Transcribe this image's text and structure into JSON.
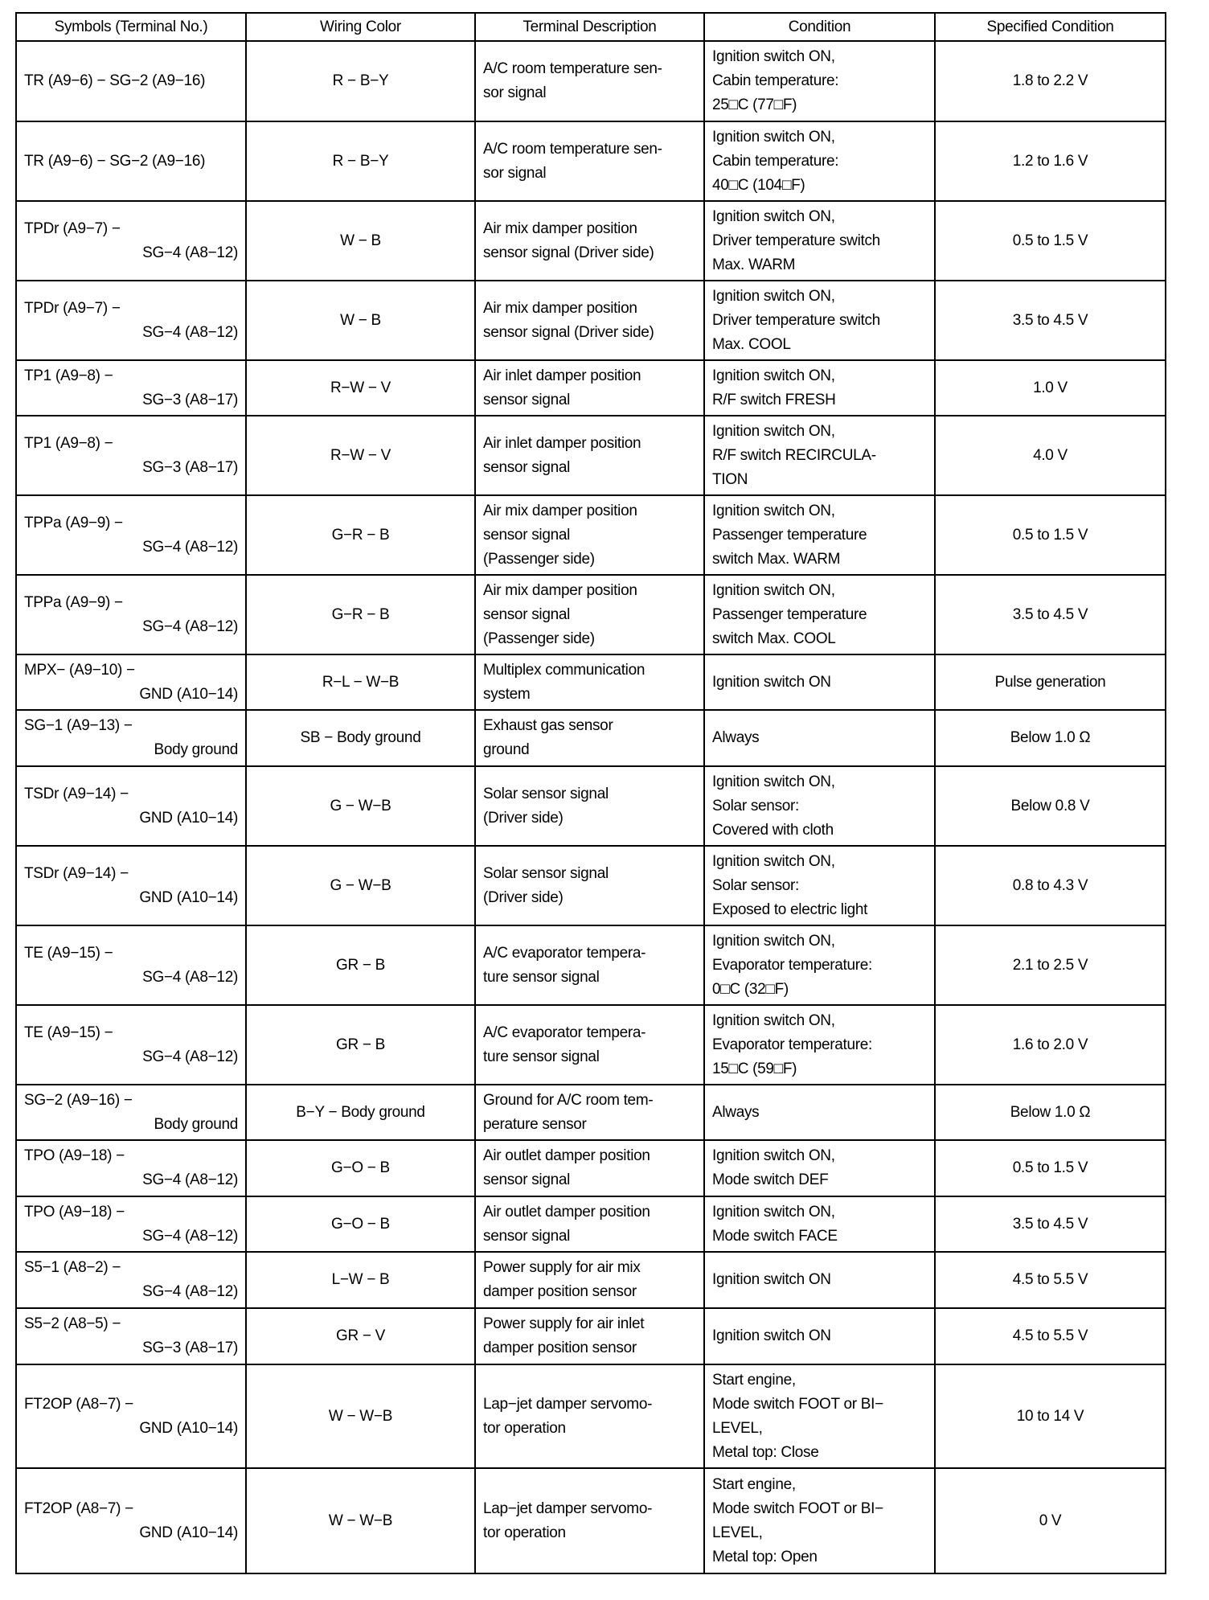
{
  "headers": [
    "Symbols (Terminal No.)",
    "Wiring Color",
    "Terminal Description",
    "Condition",
    "Specified Condition"
  ],
  "rows": [
    {
      "symbol": [
        "TR (A9−6) − SG−2 (A9−16)",
        ""
      ],
      "wiring": "R − B−Y",
      "description": "A/C room temperature sen-\nsor signal",
      "condition": "Ignition switch ON,\nCabin temperature:\n25□C (77□F)",
      "specified": "1.8 to 2.2 V"
    },
    {
      "symbol": [
        "TR (A9−6) − SG−2 (A9−16)",
        ""
      ],
      "wiring": "R − B−Y",
      "description": "A/C room temperature sen-\nsor signal",
      "condition": "Ignition switch ON,\nCabin temperature:\n40□C (104□F)",
      "specified": "1.2 to 1.6 V"
    },
    {
      "symbol": [
        "TPDr (A9−7) −",
        "SG−4 (A8−12)"
      ],
      "wiring": "W − B",
      "description": "Air mix damper position\nsensor signal (Driver side)",
      "condition": "Ignition switch ON,\nDriver temperature switch\nMax. WARM",
      "specified": "0.5 to 1.5 V"
    },
    {
      "symbol": [
        "TPDr (A9−7) −",
        "SG−4 (A8−12)"
      ],
      "wiring": "W − B",
      "description": "Air mix damper position\nsensor signal (Driver side)",
      "condition": "Ignition switch ON,\nDriver temperature switch\nMax. COOL",
      "specified": "3.5 to 4.5 V"
    },
    {
      "symbol": [
        "TP1 (A9−8) −",
        "SG−3 (A8−17)"
      ],
      "wiring": "R−W − V",
      "description": "Air inlet damper position\nsensor signal",
      "condition": "Ignition switch ON,\nR/F switch FRESH",
      "specified": "1.0 V"
    },
    {
      "symbol": [
        "TP1 (A9−8) −",
        "SG−3 (A8−17)"
      ],
      "wiring": "R−W − V",
      "description": "Air inlet damper position\nsensor signal",
      "condition": "Ignition switch ON,\nR/F switch RECIRCULA-\nTION",
      "specified": "4.0 V"
    },
    {
      "symbol": [
        "TPPa (A9−9) −",
        "SG−4 (A8−12)"
      ],
      "wiring": "G−R − B",
      "description": "Air mix damper position\nsensor signal\n(Passenger side)",
      "condition": "Ignition switch ON,\nPassenger temperature\nswitch Max. WARM",
      "specified": "0.5 to 1.5 V"
    },
    {
      "symbol": [
        "TPPa (A9−9) −",
        "SG−4 (A8−12)"
      ],
      "wiring": "G−R − B",
      "description": "Air mix damper position\nsensor signal\n(Passenger side)",
      "condition": "Ignition switch ON,\nPassenger temperature\nswitch Max. COOL",
      "specified": "3.5 to 4.5 V"
    },
    {
      "symbol": [
        "MPX− (A9−10) −",
        "GND (A10−14)"
      ],
      "wiring": "R−L − W−B",
      "description": "Multiplex communication\nsystem",
      "condition": "Ignition switch ON",
      "specified": "Pulse generation"
    },
    {
      "symbol": [
        "SG−1 (A9−13) −",
        "Body ground"
      ],
      "wiring": "SB − Body ground",
      "description": "Exhaust gas sensor\nground",
      "condition": "Always",
      "specified": "Below 1.0 Ω"
    },
    {
      "symbol": [
        "TSDr (A9−14) −",
        "GND (A10−14)"
      ],
      "wiring": "G − W−B",
      "description": "Solar sensor signal\n(Driver side)",
      "condition": "Ignition switch ON,\nSolar sensor:\nCovered with cloth",
      "specified": "Below 0.8 V"
    },
    {
      "symbol": [
        "TSDr (A9−14) −",
        "GND (A10−14)"
      ],
      "wiring": "G − W−B",
      "description": "Solar sensor signal\n(Driver side)",
      "condition": "Ignition switch ON,\nSolar sensor:\nExposed to electric light",
      "specified": "0.8 to 4.3 V"
    },
    {
      "symbol": [
        "TE (A9−15) −",
        "SG−4 (A8−12)"
      ],
      "wiring": "GR − B",
      "description": "A/C evaporator tempera-\nture sensor signal",
      "condition": "Ignition switch ON,\nEvaporator temperature:\n0□C (32□F)",
      "specified": "2.1 to 2.5 V"
    },
    {
      "symbol": [
        "TE (A9−15) −",
        "SG−4 (A8−12)"
      ],
      "wiring": "GR − B",
      "description": "A/C evaporator tempera-\nture sensor signal",
      "condition": "Ignition switch ON,\nEvaporator temperature:\n15□C (59□F)",
      "specified": "1.6 to 2.0 V"
    },
    {
      "symbol": [
        "SG−2 (A9−16) −",
        "Body ground"
      ],
      "wiring": "B−Y − Body ground",
      "description": "Ground for A/C room tem-\nperature sensor",
      "condition": "Always",
      "specified": "Below 1.0 Ω"
    },
    {
      "symbol": [
        "TPO (A9−18) −",
        "SG−4 (A8−12)"
      ],
      "wiring": "G−O − B",
      "description": "Air outlet damper position\nsensor signal",
      "condition": "Ignition switch ON,\nMode switch DEF",
      "specified": "0.5 to 1.5 V"
    },
    {
      "symbol": [
        "TPO (A9−18) −",
        "SG−4 (A8−12)"
      ],
      "wiring": "G−O − B",
      "description": "Air outlet damper position\nsensor signal",
      "condition": "Ignition switch ON,\nMode switch FACE",
      "specified": "3.5 to 4.5 V"
    },
    {
      "symbol": [
        "S5−1 (A8−2) −",
        "SG−4 (A8−12)"
      ],
      "wiring": "L−W − B",
      "description": "Power supply for air mix\ndamper position sensor",
      "condition": "Ignition switch ON",
      "specified": "4.5 to 5.5 V"
    },
    {
      "symbol": [
        "S5−2 (A8−5) −",
        "SG−3 (A8−17)"
      ],
      "wiring": "GR − V",
      "description": "Power supply for air inlet\ndamper position sensor",
      "condition": "Ignition switch ON",
      "specified": "4.5 to 5.5 V"
    },
    {
      "symbol": [
        "FT2OP (A8−7) −",
        "GND (A10−14)"
      ],
      "wiring": "W − W−B",
      "description": "Lap−jet damper servomo-\ntor operation",
      "condition": "Start engine,\nMode switch FOOT or BI−\nLEVEL,\nMetal top: Close",
      "specified": "10 to 14 V"
    },
    {
      "symbol": [
        "FT2OP (A8−7) −",
        "GND (A10−14)"
      ],
      "wiring": "W − W−B",
      "description": "Lap−jet damper servomo-\ntor operation",
      "condition": "Start engine,\nMode switch FOOT or BI−\nLEVEL,\nMetal top: Open",
      "specified": "0 V"
    }
  ]
}
